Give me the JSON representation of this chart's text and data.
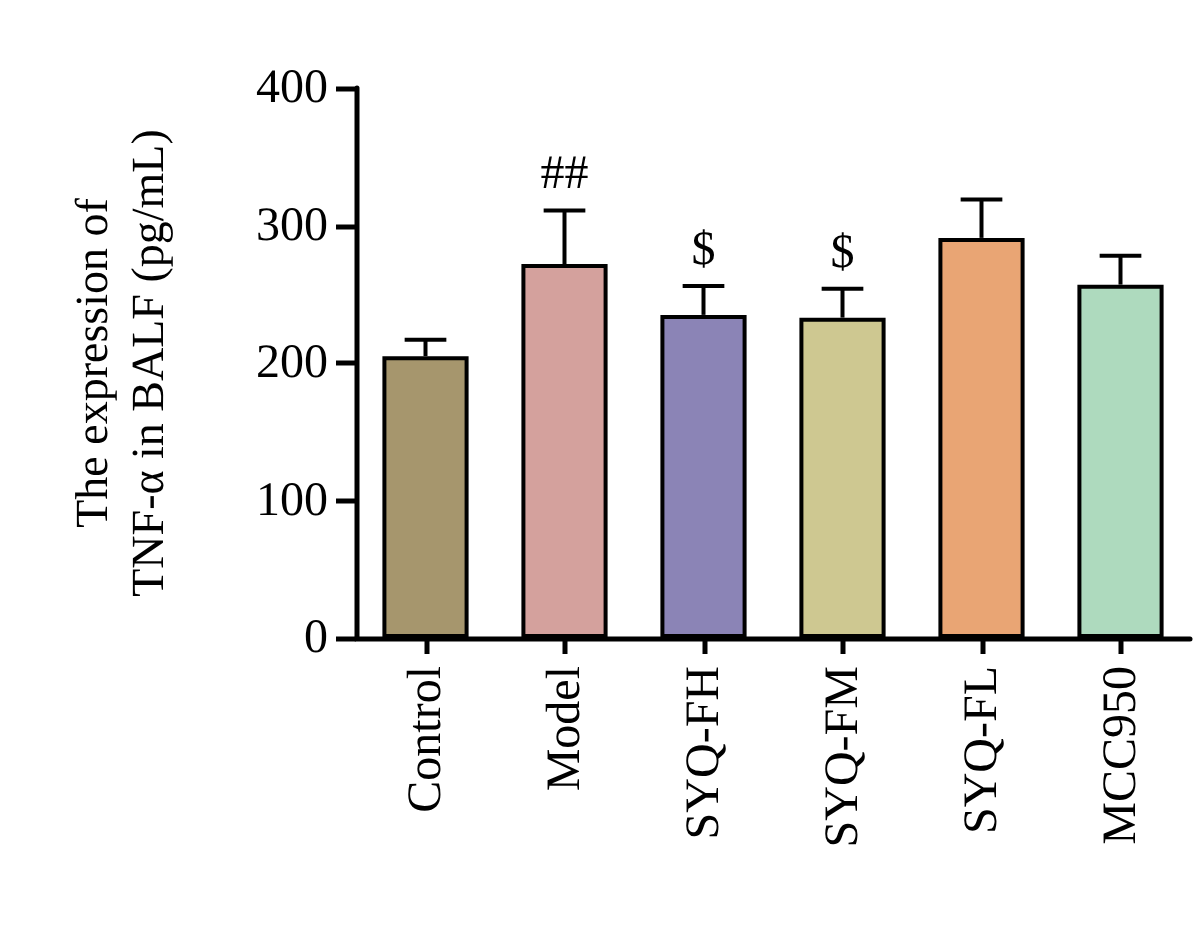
{
  "chart_data": {
    "type": "bar",
    "ylabel": "The expression of TNF-α in BALF (pg/mL)",
    "categories": [
      "Control",
      "Model",
      "SYQ-FH",
      "SYQ-FM",
      "SYQ-FL",
      "MCC950"
    ],
    "values": [
      205,
      272,
      235,
      233,
      291,
      257
    ],
    "errors": [
      12,
      39,
      21,
      21,
      28,
      21
    ],
    "colors": [
      "#a6966d",
      "#d4a19d",
      "#8b84b6",
      "#cec891",
      "#e9a574",
      "#aedabe"
    ],
    "ylim": [
      0,
      400
    ],
    "yticks": [
      0,
      100,
      200,
      300,
      400
    ],
    "grid": false,
    "annotations": [
      {
        "text": "##",
        "x": "Model",
        "y": 311
      },
      {
        "text": "$",
        "x": "SYQ-FH",
        "y": 256
      },
      {
        "text": "$",
        "x": "SYQ-FM",
        "y": 254
      }
    ]
  }
}
